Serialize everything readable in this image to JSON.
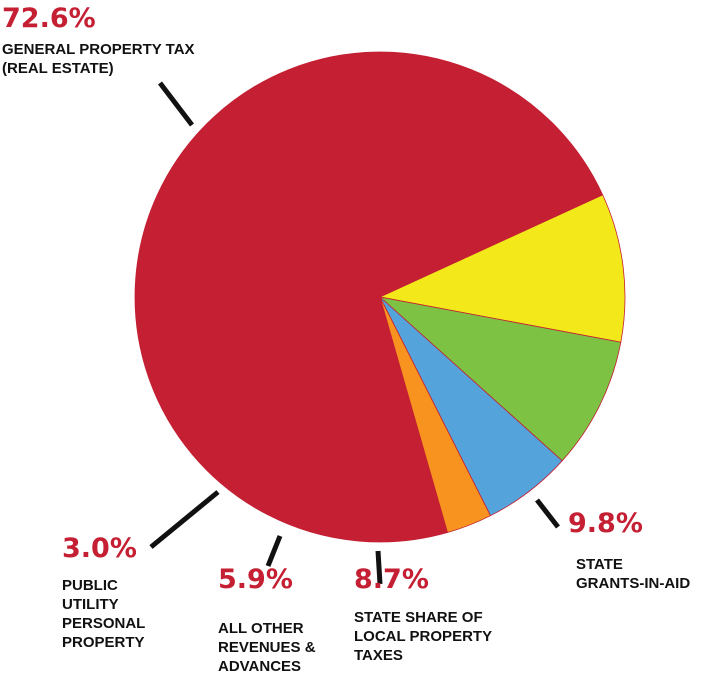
{
  "chart_data": {
    "type": "pie",
    "title": "",
    "slices": [
      {
        "category_lines": [
          "GENERAL PROPERTY TAX",
          "(REAL ESTATE)"
        ],
        "value": 72.6,
        "value_label": "72.6%",
        "color": "#c41f33"
      },
      {
        "category_lines": [
          "STATE",
          "GRANTS-IN-AID"
        ],
        "value": 9.8,
        "value_label": "9.8%",
        "color": "#f2e81a"
      },
      {
        "category_lines": [
          "STATE SHARE OF",
          "LOCAL PROPERTY",
          "TAXES"
        ],
        "value": 8.7,
        "value_label": "8.7%",
        "color": "#7dc242"
      },
      {
        "category_lines": [
          "ALL OTHER",
          "REVENUES &",
          "ADVANCES"
        ],
        "value": 5.9,
        "value_label": "5.9%",
        "color": "#55a3db"
      },
      {
        "category_lines": [
          "PUBLIC",
          "UTILITY",
          "PERSONAL",
          "PROPERTY"
        ],
        "value": 3.0,
        "value_label": "3.0%",
        "color": "#f7931e"
      }
    ],
    "start_angle_deg": 164,
    "direction": "clockwise",
    "legend": "none",
    "label_color": "#c41f33",
    "leader_line_color": "#111111"
  }
}
